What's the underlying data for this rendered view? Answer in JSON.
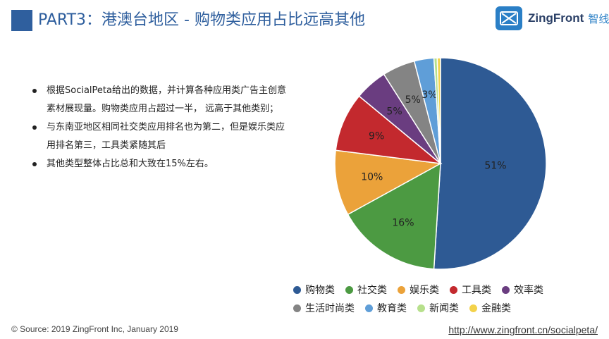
{
  "header": {
    "title": "PART3：港澳台地区 - 购物类应用占比远高其他"
  },
  "logo": {
    "text": "ZingFront",
    "cn": "智线",
    "icon": "zingfront-logo-icon"
  },
  "bullets": [
    "根据SocialPeta给出的数据，并计算各种应用类广告主创意素材展现量。购物类应用占超过一半， 远高于其他类别；",
    "与东南亚地区相同社交类应用排名也为第二，但是娱乐类应用排名第三，工具类紧随其后",
    "其他类型整体占比总和大致在15%左右。"
  ],
  "chart_data": {
    "type": "pie",
    "title": "",
    "slices": [
      {
        "name": "购物类",
        "value": 51,
        "label": "51%",
        "color": "#2e5a94"
      },
      {
        "name": "社交类",
        "value": 16,
        "label": "16%",
        "color": "#4c9a42"
      },
      {
        "name": "娱乐类",
        "value": 10,
        "label": "10%",
        "color": "#eba23a"
      },
      {
        "name": "工具类",
        "value": 9,
        "label": "9%",
        "color": "#c3292e"
      },
      {
        "name": "效率类",
        "value": 5,
        "label": "5%",
        "color": "#6a3d80"
      },
      {
        "name": "生活时尚类",
        "value": 5,
        "label": "5%",
        "color": "#848484"
      },
      {
        "name": "教育类",
        "value": 3,
        "label": "3%",
        "color": "#5f9ed8"
      },
      {
        "name": "新闻类",
        "value": 0.5,
        "label": "",
        "color": "#b7e08c"
      },
      {
        "name": "金融类",
        "value": 0.5,
        "label": "",
        "color": "#f3d24b"
      }
    ],
    "legend_placement": "bottom"
  },
  "footer": {
    "source": "© Source: 2019 ZingFront Inc, January 2019",
    "url": "http://www.zingfront.cn/socialpeta/"
  }
}
